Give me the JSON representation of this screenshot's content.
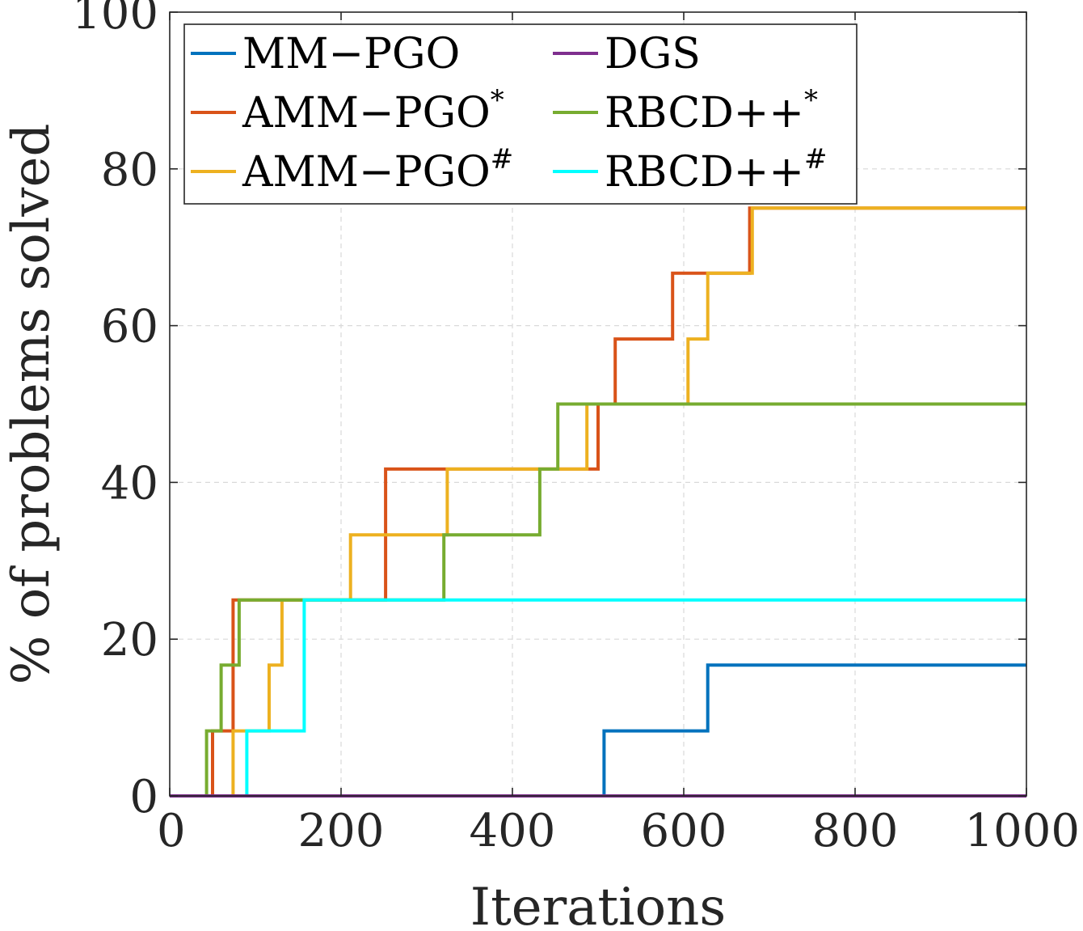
{
  "chart_data": {
    "type": "line",
    "xlabel": "Iterations",
    "ylabel": "% of problems solved",
    "xlim": [
      0,
      1000
    ],
    "ylim": [
      0,
      100
    ],
    "xticks": [
      "0",
      "200",
      "400",
      "600",
      "800",
      "1000"
    ],
    "yticks": [
      "0",
      "20",
      "40",
      "60",
      "80",
      "100"
    ],
    "grid": true,
    "legend_position": "top-left",
    "series": [
      {
        "name": "MM−PGO",
        "name_base": "MM−PGO",
        "name_sup": "",
        "color": "#0072BD",
        "x": [
          0,
          507,
          507,
          628,
          628,
          1000
        ],
        "y": [
          0,
          0,
          8.3,
          8.3,
          16.7,
          16.7
        ]
      },
      {
        "name": "DGS",
        "name_base": "DGS",
        "name_sup": "",
        "color": "#7E2F8E",
        "x": [
          0,
          1000
        ],
        "y": [
          0,
          0
        ]
      },
      {
        "name": "AMM−PGO*",
        "name_base": "AMM−PGO",
        "name_sup": "*",
        "color": "#D95319",
        "x": [
          0,
          50,
          50,
          74,
          74,
          252,
          252,
          500,
          500,
          520,
          520,
          587,
          587,
          677,
          677,
          1000
        ],
        "y": [
          0,
          0,
          8.3,
          8.3,
          25,
          25,
          41.7,
          41.7,
          50,
          50,
          58.3,
          58.3,
          66.7,
          66.7,
          75,
          75
        ]
      },
      {
        "name": "RBCD++*",
        "name_base": "RBCD++",
        "name_sup": "*",
        "color": "#77AC30",
        "x": [
          0,
          43,
          43,
          60,
          60,
          81,
          81,
          320,
          320,
          432,
          432,
          453,
          453,
          1000
        ],
        "y": [
          0,
          0,
          8.3,
          8.3,
          16.7,
          16.7,
          25,
          25,
          33.3,
          33.3,
          41.7,
          41.7,
          50,
          50
        ]
      },
      {
        "name": "AMM−PGO#",
        "name_base": "AMM−PGO",
        "name_sup": "#",
        "color": "#EDB120",
        "x": [
          0,
          74,
          74,
          116,
          116,
          131,
          131,
          211,
          211,
          324,
          324,
          487,
          487,
          605,
          605,
          628,
          628,
          680,
          680,
          1000
        ],
        "y": [
          0,
          0,
          8.3,
          8.3,
          16.7,
          16.7,
          25,
          25,
          33.3,
          33.3,
          41.7,
          41.7,
          50,
          50,
          58.3,
          58.3,
          66.7,
          66.7,
          75,
          75
        ]
      },
      {
        "name": "RBCD++#",
        "name_base": "RBCD++",
        "name_sup": "#",
        "color": "#00FFFF",
        "x": [
          0,
          90,
          90,
          157,
          157,
          1000
        ],
        "y": [
          0,
          0,
          8.3,
          8.3,
          25,
          25
        ]
      }
    ]
  }
}
